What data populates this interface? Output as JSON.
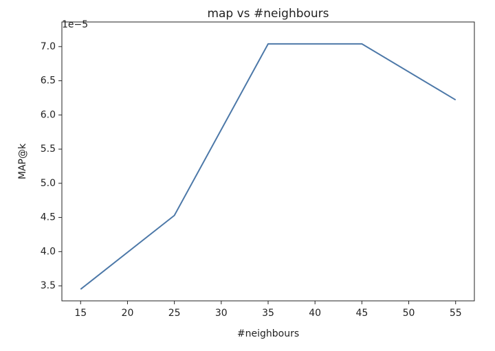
{
  "chart_data": {
    "type": "line",
    "title": "map vs #neighbours",
    "xlabel": "#neighbours",
    "ylabel": "MAP@k",
    "y_offset_label": "1e−5",
    "x": [
      15,
      25,
      35,
      45,
      55
    ],
    "series": [
      {
        "name": "MAP@k",
        "color": "#4c78a8",
        "values": [
          3.45,
          4.53,
          7.04,
          7.04,
          6.22
        ]
      }
    ],
    "xlim": [
      13,
      57
    ],
    "xticks": [
      15,
      20,
      25,
      30,
      35,
      40,
      45,
      50,
      55
    ],
    "ylim": [
      3.28,
      7.36
    ],
    "yticks": [
      3.5,
      {
        "value": 4,
        "label": "4.0"
      },
      4.5,
      {
        "value": 5,
        "label": "5.0"
      },
      5.5,
      {
        "value": 6,
        "label": "6.0"
      },
      6.5,
      {
        "value": 7,
        "label": "7.0"
      }
    ],
    "grid": false
  }
}
